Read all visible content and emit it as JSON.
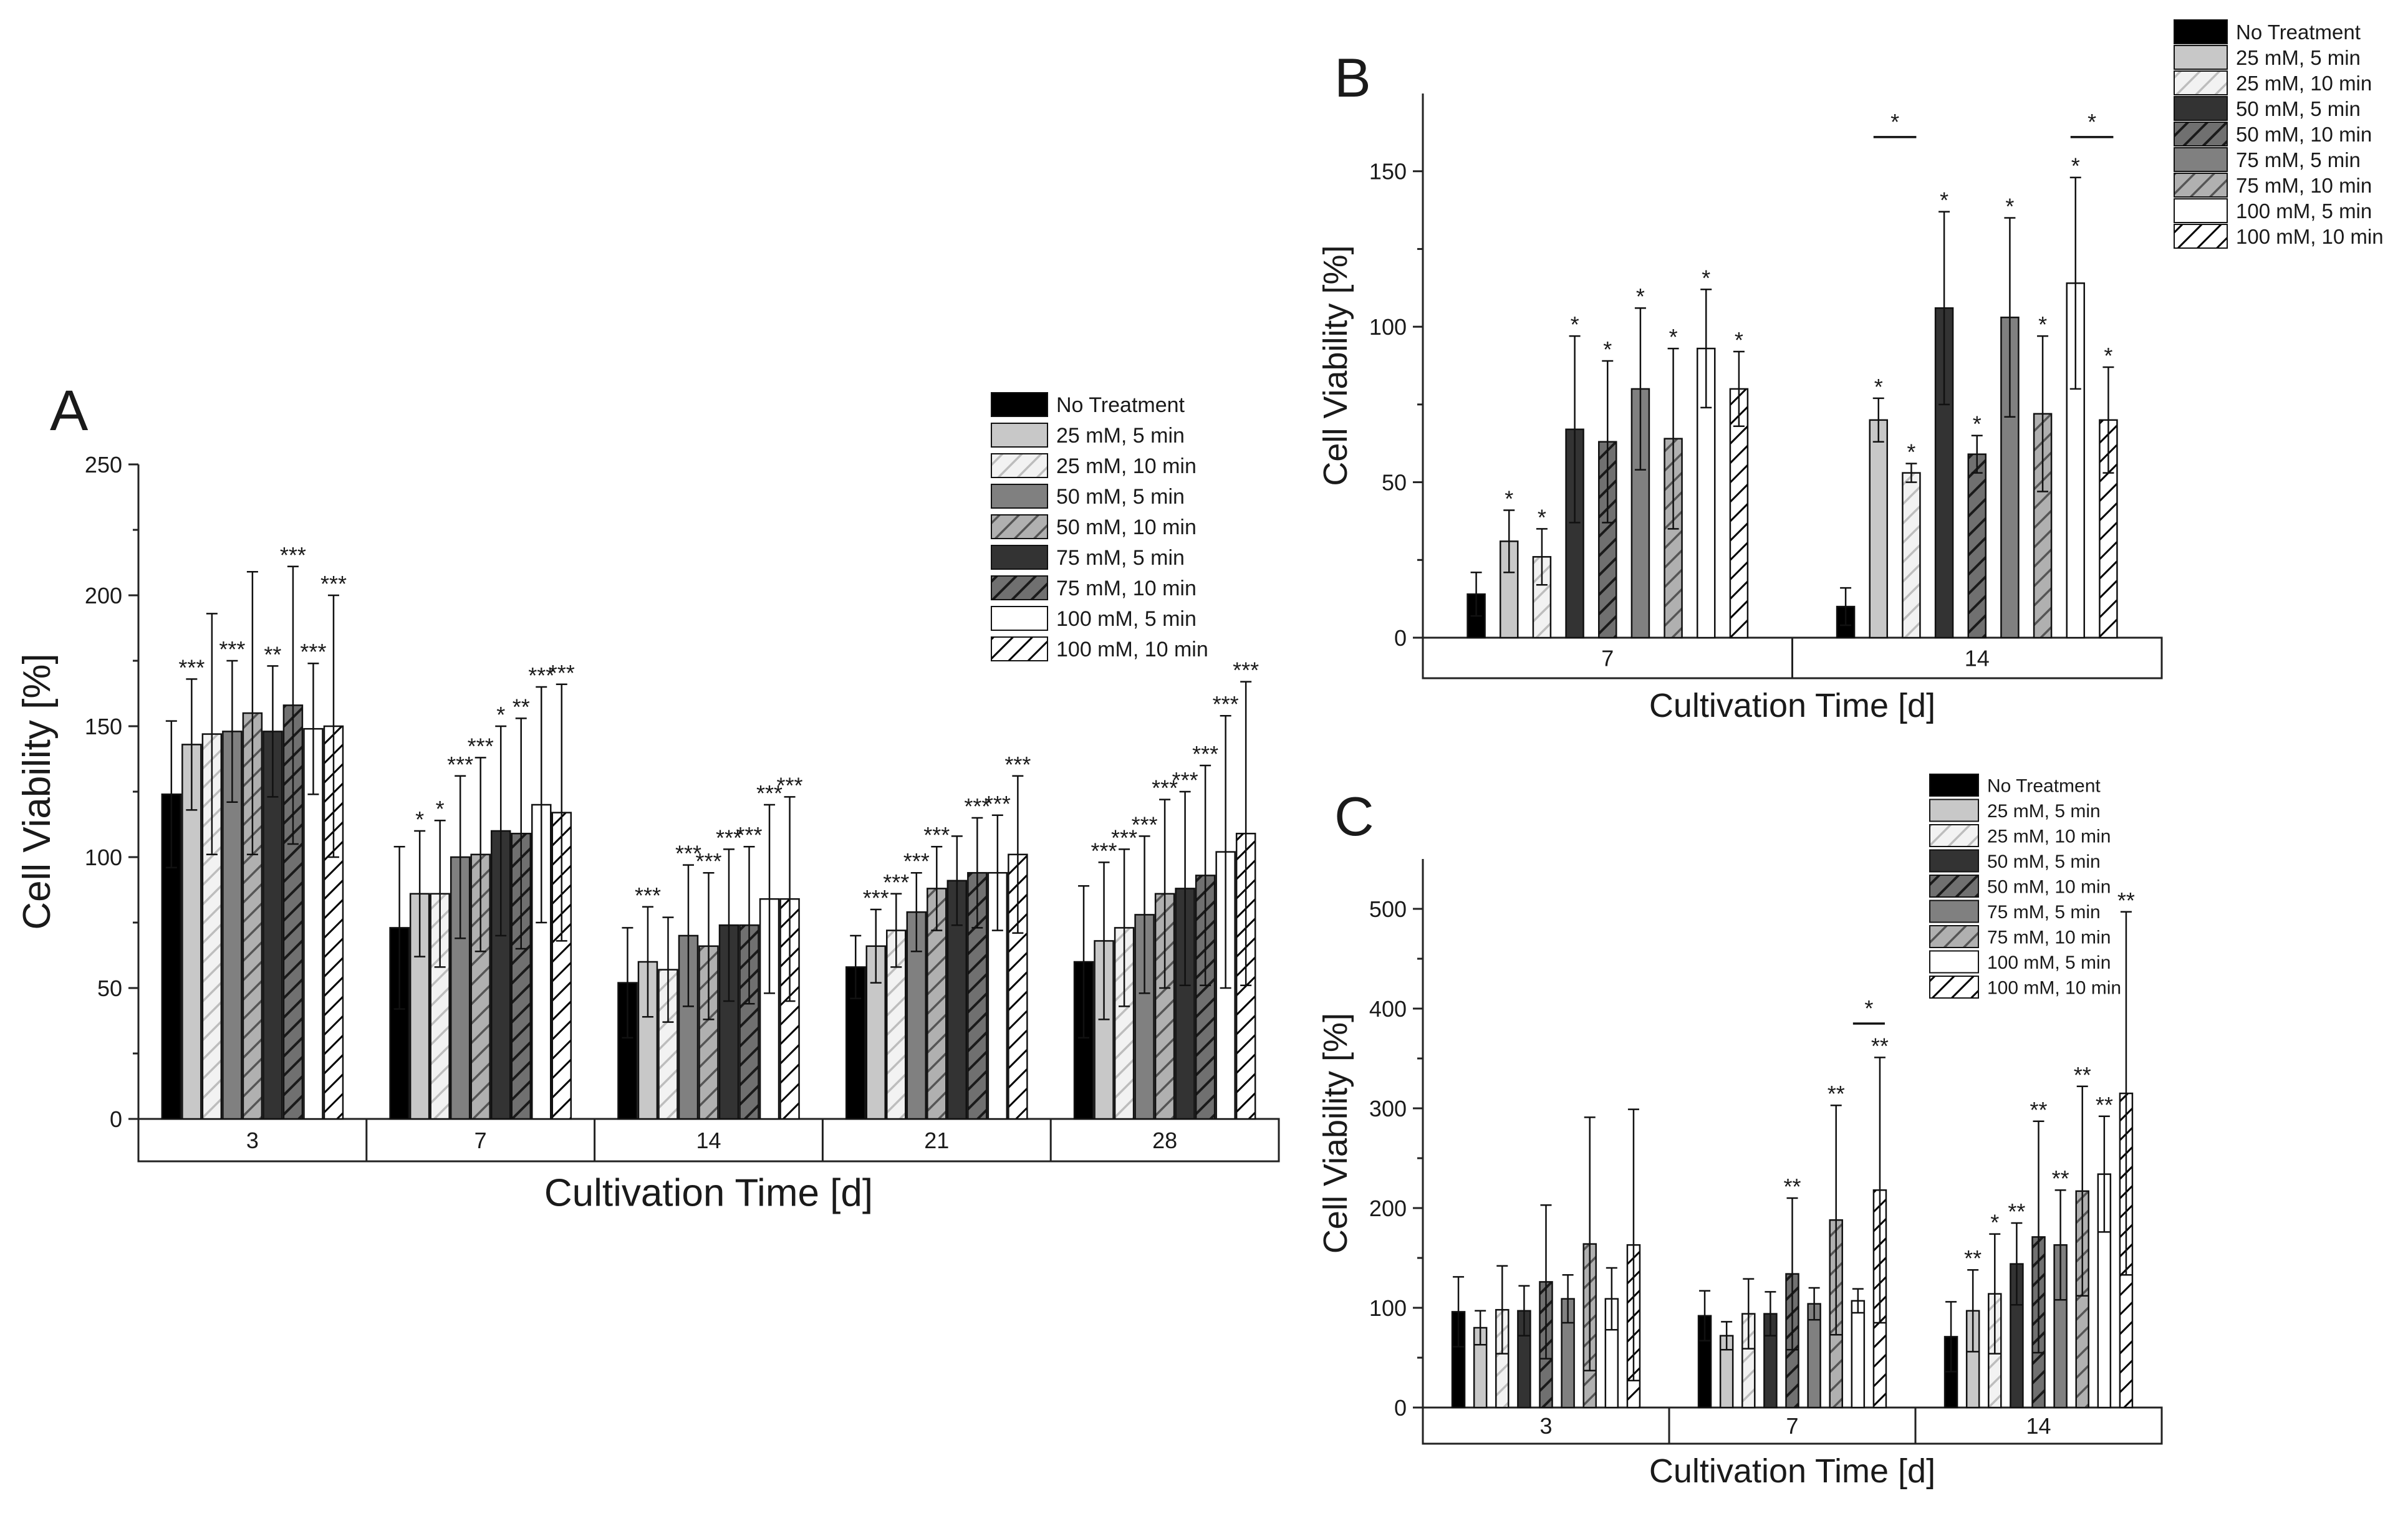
{
  "figure": {
    "legend_items": [
      {
        "label": "No Treatment",
        "fill": "#000000",
        "hatch": false
      },
      {
        "label": " 25 mM,   5 min",
        "fill": "#c8c8c8",
        "hatch": false
      },
      {
        "label": " 25 mM, 10 min",
        "fill": "#e6e6e6",
        "hatch": true
      },
      {
        "label": " 50 mM,   5 min",
        "fill": "#808080",
        "hatch": false
      },
      {
        "label": " 50 mM, 10 min",
        "fill": "#909090",
        "hatch": true
      },
      {
        "label": " 75 mM,   5 min",
        "fill": "#333333",
        "hatch": false
      },
      {
        "label": " 75 mM, 10 min",
        "fill": "#444444",
        "hatch": true
      },
      {
        "label": "100 mM,   5 min",
        "fill": "#ffffff",
        "hatch": false
      },
      {
        "label": "100 mM, 10 min",
        "fill": "#ffffff",
        "hatch": true
      }
    ],
    "legend_items_bc": [
      {
        "label": "No Treatment",
        "fill": "#000000",
        "hatch": false
      },
      {
        "label": " 25 mM,   5 min",
        "fill": "#c8c8c8",
        "hatch": false
      },
      {
        "label": " 25 mM, 10 min",
        "fill": "#e6e6e6",
        "hatch": true
      },
      {
        "label": " 50 mM,   5 min",
        "fill": "#333333",
        "hatch": false
      },
      {
        "label": " 50 mM, 10 min",
        "fill": "#444444",
        "hatch": true
      },
      {
        "label": " 75 mM,   5 min",
        "fill": "#808080",
        "hatch": false
      },
      {
        "label": " 75 mM, 10 min",
        "fill": "#909090",
        "hatch": true
      },
      {
        "label": "100 mM,   5 min",
        "fill": "#ffffff",
        "hatch": false
      },
      {
        "label": "100 mM, 10 min",
        "fill": "#ffffff",
        "hatch": true
      }
    ]
  },
  "chart_data": [
    {
      "panel": "A",
      "type": "bar",
      "xlabel": "Cultivation Time [d]",
      "ylabel": "Cell Viability [%]",
      "ylim": [
        0,
        250
      ],
      "yticks": [
        0,
        50,
        100,
        150,
        200,
        250
      ],
      "legend_position": "top-right",
      "categories": [
        "3",
        "7",
        "14",
        "21",
        "28"
      ],
      "series_names": [
        "No Treatment",
        "25 mM, 5 min",
        "25 mM, 10 min",
        "50 mM, 5 min",
        "50 mM, 10 min",
        "75 mM, 5 min",
        "75 mM, 10 min",
        "100 mM, 5 min",
        "100 mM, 10 min"
      ],
      "values": [
        [
          124,
          143,
          147,
          148,
          155,
          148,
          158,
          149,
          150
        ],
        [
          73,
          86,
          86,
          100,
          101,
          110,
          109,
          120,
          117
        ],
        [
          52,
          60,
          57,
          70,
          66,
          74,
          74,
          84,
          84
        ],
        [
          58,
          66,
          72,
          79,
          88,
          91,
          94,
          94,
          101
        ],
        [
          60,
          68,
          73,
          78,
          86,
          88,
          93,
          102,
          109
        ]
      ],
      "errors": [
        [
          28,
          25,
          46,
          27,
          54,
          25,
          53,
          25,
          50
        ],
        [
          31,
          24,
          28,
          31,
          37,
          40,
          44,
          45,
          49
        ],
        [
          21,
          21,
          20,
          27,
          28,
          29,
          30,
          36,
          39
        ],
        [
          12,
          14,
          14,
          15,
          16,
          17,
          21,
          22,
          30
        ],
        [
          29,
          30,
          30,
          30,
          36,
          37,
          42,
          52,
          58
        ]
      ],
      "annotations": [
        [
          "",
          "***",
          "",
          "***",
          "",
          "**",
          "***",
          "***",
          "***"
        ],
        [
          "",
          "*",
          "*",
          "***",
          "***",
          "*",
          "**",
          "***",
          "***"
        ],
        [
          "",
          "***",
          "",
          "***",
          "***",
          "***",
          "***",
          "***",
          "***"
        ],
        [
          "",
          "***",
          "***",
          "***",
          "***",
          "",
          "***",
          "***",
          "***"
        ],
        [
          "",
          "***",
          "***",
          "***",
          "***",
          "***",
          "***",
          "***",
          "***"
        ]
      ]
    },
    {
      "panel": "B",
      "type": "bar",
      "xlabel": "Cultivation Time [d]",
      "ylabel": "Cell Viability [%]",
      "ylim": [
        0,
        175
      ],
      "yticks": [
        0,
        50,
        100,
        150
      ],
      "legend_position": "top-right",
      "categories": [
        "7",
        "14"
      ],
      "series_names": [
        "No Treatment",
        "25 mM, 5 min",
        "25 mM, 10 min",
        "50 mM, 5 min",
        "50 mM, 10 min",
        "75 mM, 5 min",
        "75 mM, 10 min",
        "100 mM, 5 min",
        "100 mM, 10 min"
      ],
      "values": [
        [
          14,
          31,
          26,
          67,
          63,
          80,
          64,
          93,
          80
        ],
        [
          10,
          70,
          53,
          106,
          59,
          103,
          72,
          114,
          70
        ]
      ],
      "errors": [
        [
          7,
          10,
          9,
          30,
          26,
          26,
          29,
          19,
          12
        ],
        [
          6,
          7,
          3,
          31,
          6,
          32,
          25,
          34,
          17
        ]
      ],
      "annotations": [
        [
          "",
          "*",
          "*",
          "*",
          "*",
          "*",
          "*",
          "*",
          "*"
        ],
        [
          "",
          "*",
          "*",
          "*",
          "*",
          "*",
          "*",
          "*",
          "*"
        ]
      ],
      "brackets": [
        {
          "category": "14",
          "from_series": 1,
          "to_series": 2,
          "value": 161,
          "label": "*"
        },
        {
          "category": "14",
          "from_series": 7,
          "to_series": 8,
          "value": 161,
          "label": "*"
        }
      ]
    },
    {
      "panel": "C",
      "type": "bar",
      "xlabel": "Cultivation Time [d]",
      "ylabel": "Cell Viability [%]",
      "ylim": [
        0,
        550
      ],
      "yticks": [
        0,
        100,
        200,
        300,
        400,
        500
      ],
      "legend_position": "top-right",
      "categories": [
        "3",
        "7",
        "14"
      ],
      "series_names": [
        "No Treatment",
        "25 mM, 5 min",
        "25 mM, 10 min",
        "50 mM, 5 min",
        "50 mM, 10 min",
        "75 mM, 5 min",
        "75 mM, 10 min",
        "100 mM, 5 min",
        "100 mM, 10 min"
      ],
      "values": [
        [
          96,
          80,
          98,
          97,
          126,
          109,
          164,
          109,
          163
        ],
        [
          92,
          72,
          94,
          94,
          134,
          104,
          188,
          107,
          218
        ],
        [
          71,
          97,
          114,
          144,
          171,
          163,
          217,
          234,
          315
        ]
      ],
      "errors": [
        [
          35,
          17,
          44,
          25,
          77,
          24,
          127,
          31,
          136
        ],
        [
          25,
          14,
          35,
          22,
          76,
          16,
          115,
          12,
          133
        ],
        [
          35,
          41,
          60,
          41,
          116,
          55,
          105,
          58,
          182
        ]
      ],
      "annotations": [
        [
          "",
          "",
          "",
          "",
          "",
          "",
          "",
          "",
          ""
        ],
        [
          "",
          "",
          "",
          "",
          "**",
          "",
          "**",
          "",
          "**"
        ],
        [
          "",
          "**",
          "*",
          "**",
          "**",
          "**",
          "**",
          "**",
          "**"
        ]
      ],
      "brackets": [
        {
          "category": "7",
          "from_series": 7,
          "to_series": 8,
          "value": 385,
          "label": "*"
        }
      ]
    }
  ]
}
